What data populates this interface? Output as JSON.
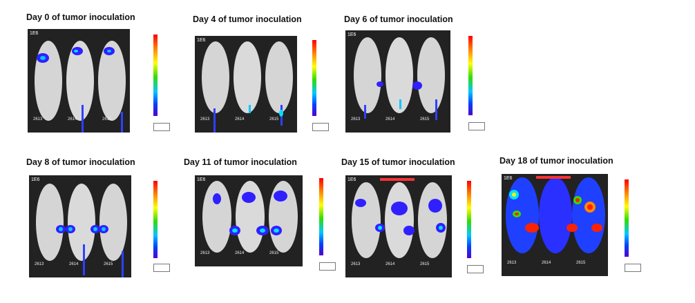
{
  "panels": [
    {
      "title": "Day 0 of tumor inoculation",
      "tag": "1E6",
      "mice": [
        "2613",
        "2614",
        "2615"
      ]
    },
    {
      "title": "Day 4 of tumor inoculation",
      "tag": "1E6",
      "mice": [
        "2613",
        "2614",
        "2615"
      ]
    },
    {
      "title": "Day 6 of tumor inoculation",
      "tag": "1E6",
      "mice": [
        "2613",
        "2614",
        "2615"
      ]
    },
    {
      "title": "Day 8 of tumor inoculation",
      "tag": "1E6",
      "mice": [
        "2613",
        "2614",
        "2615"
      ]
    },
    {
      "title": "Day 11 of tumor inoculation",
      "tag": "1E6",
      "mice": [
        "2613",
        "2614",
        "2615"
      ]
    },
    {
      "title": "Day 15 of tumor inoculation",
      "tag": "1E6",
      "mice": [
        "2613",
        "2614",
        "2615"
      ]
    },
    {
      "title": "Day 18 of tumor inoculation",
      "tag": "1E6",
      "mice": [
        "2613",
        "2614",
        "2615"
      ]
    }
  ],
  "colors": {
    "background": "#ffffff",
    "image_bg": "#2a2a2a",
    "mouse": "#d9d9d9"
  },
  "image_content": "bioluminescence images of three mice per time point with color scale"
}
